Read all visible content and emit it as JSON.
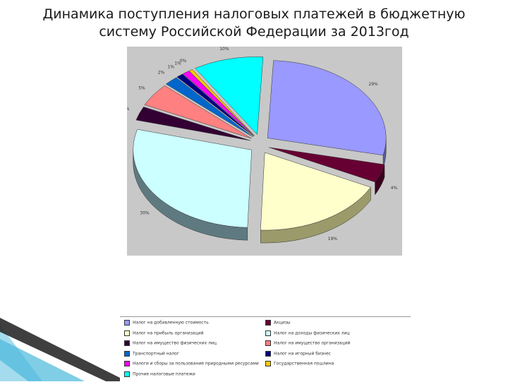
{
  "title_line1": "Динамика поступления налоговых платежей в бюджетную",
  "title_line2": "систему Российской Федерации за 2013год",
  "chart_data": {
    "type": "pie",
    "title": "Динамика поступления налоговых платежей в бюджетную систему Российской Федерации за 2013год",
    "legend_position": "bottom",
    "slices": [
      {
        "name": "Налог на добавленную стоимость",
        "value": 29,
        "label": "29%",
        "color": "#9999ff",
        "side": "#5a5a9a"
      },
      {
        "name": "Акцизы",
        "value": 4,
        "label": "4%",
        "color": "#660033",
        "side": "#3a001c"
      },
      {
        "name": "Налог на прибыль организаций",
        "value": 19,
        "label": "19%",
        "color": "#ffffcc",
        "side": "#9a9a6a"
      },
      {
        "name": "Налог на доходы физических лиц",
        "value": 30,
        "label": "30%",
        "color": "#ccffff",
        "side": "#5e7a80"
      },
      {
        "name": "Налог на имущество физических лиц",
        "value": 3,
        "label": "3%",
        "color": "#330033",
        "side": "#1c001c"
      },
      {
        "name": "Налог на имущество организаций",
        "value": 5,
        "label": "5%",
        "color": "#ff8080",
        "side": "#9a4444"
      },
      {
        "name": "Транспортный налог",
        "value": 2,
        "label": "2%",
        "color": "#0066cc",
        "side": "#003a75"
      },
      {
        "name": "Налог на игорный бизнес",
        "value": 1,
        "label": "1%",
        "color": "#000080",
        "side": "#000050"
      },
      {
        "name": "Налоги и сборы за пользование природными ресурсами",
        "value": 1,
        "label": "1%",
        "color": "#ff00ff",
        "side": "#900090"
      },
      {
        "name": "Государственная пошлина",
        "value": 0.5,
        "label": "0%",
        "color": "#ffcc00",
        "side": "#9a7a00"
      },
      {
        "name": "Прочие налоговые платежи",
        "value": 10,
        "label": "10%",
        "color": "#00ffff",
        "side": "#008a8a"
      }
    ]
  }
}
